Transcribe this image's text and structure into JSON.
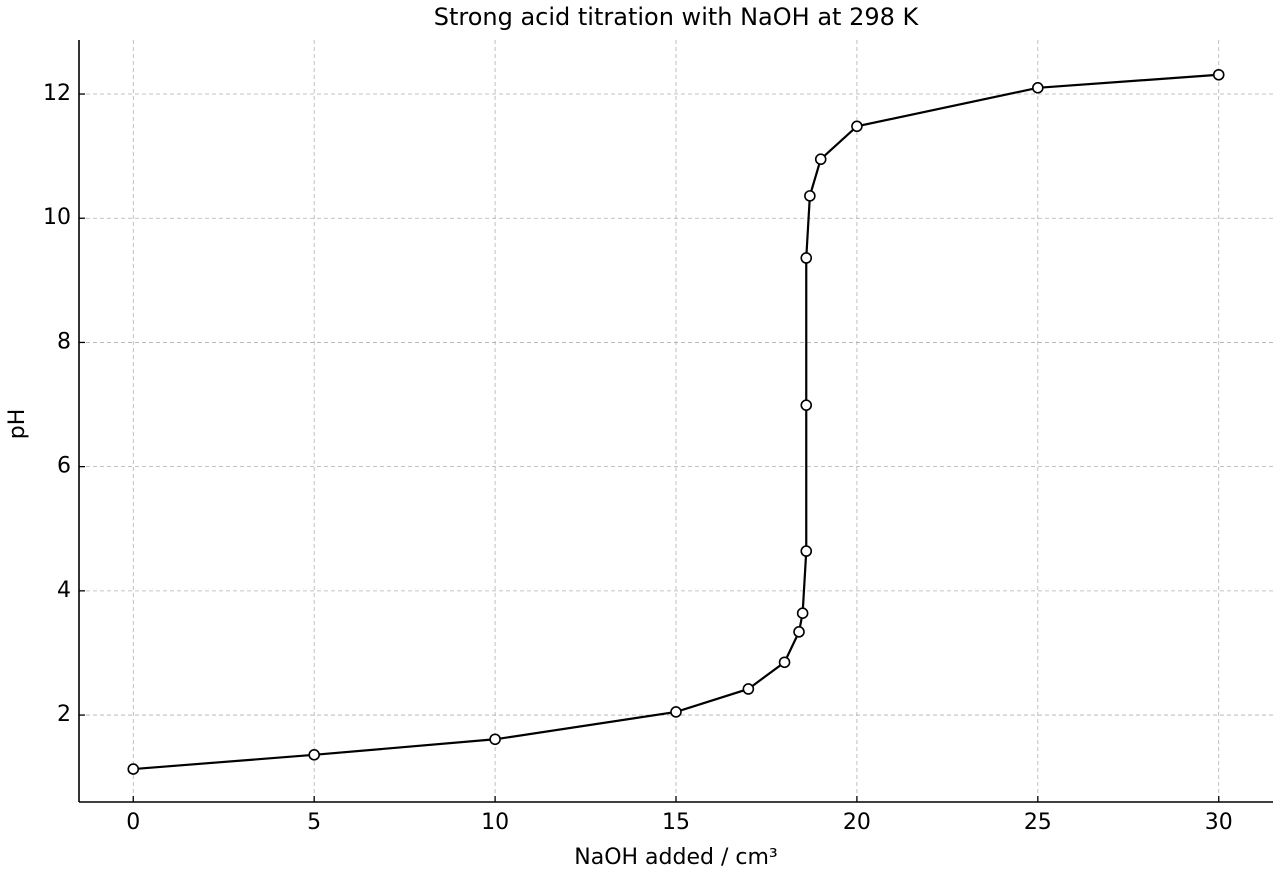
{
  "chart_data": {
    "type": "line",
    "title": "Strong acid titration with NaOH at 298 K",
    "x_label": "NaOH added / cm³",
    "y_label": "pH",
    "x": [
      0,
      5,
      10,
      15,
      17,
      18,
      18.4,
      18.5,
      18.6,
      18.6,
      18.6,
      18.7,
      19,
      20,
      25,
      30
    ],
    "series": [
      {
        "name": "pH",
        "color": "#000000",
        "values": [
          1.13,
          1.36,
          1.61,
          2.05,
          2.42,
          2.85,
          3.34,
          3.64,
          4.64,
          6.99,
          9.36,
          10.36,
          10.95,
          11.48,
          12.1,
          12.31
        ]
      }
    ],
    "xlim": [
      -1.5,
      31.5
    ],
    "ylim": [
      0.6,
      12.87
    ],
    "xticks": [
      0,
      5,
      10,
      15,
      20,
      25,
      30
    ],
    "yticks": [
      2,
      4,
      6,
      8,
      10,
      12
    ],
    "grid": true
  }
}
